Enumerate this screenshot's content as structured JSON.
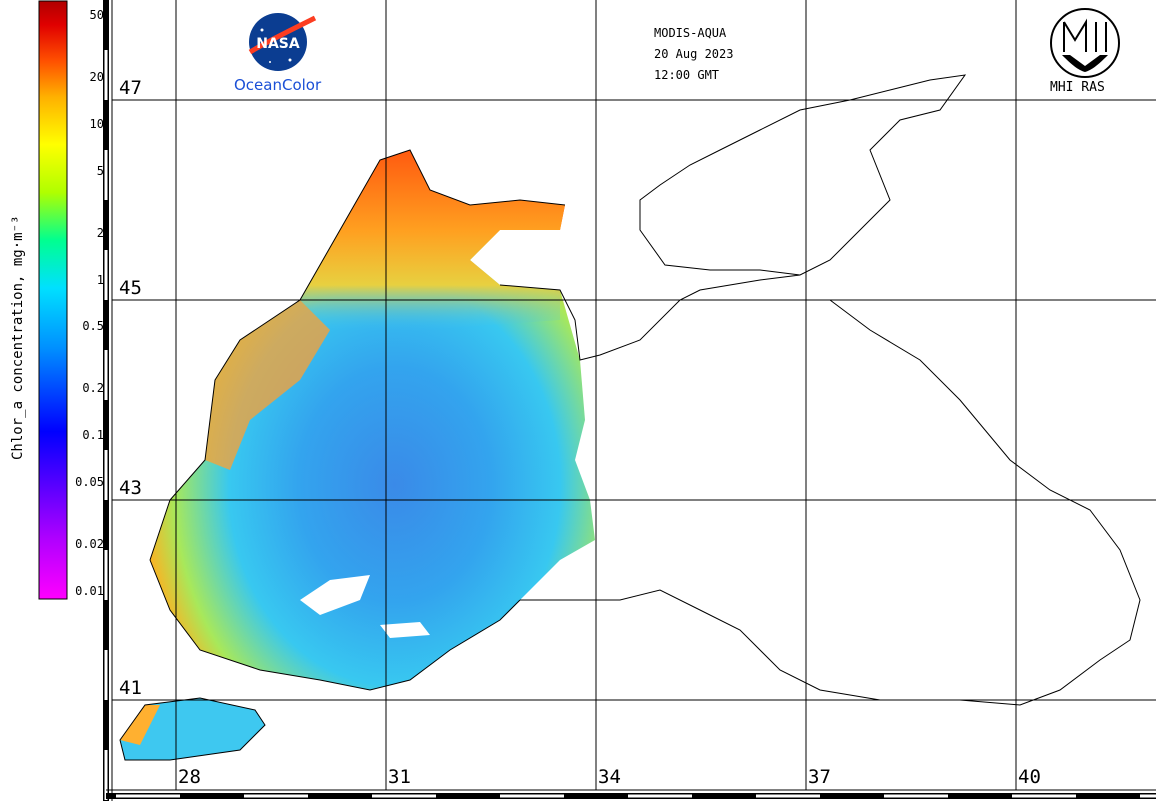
{
  "header": {
    "sensor": "MODIS-AQUA",
    "date": "20 Aug 2023",
    "time": "12:00 GMT"
  },
  "logos": {
    "nasa_logo_text": "NASA",
    "nasa_caption": "OceanColor",
    "mhi_caption": "MHI RAS"
  },
  "colorbar": {
    "title": "Chlor_a concentration, mg·m⁻³",
    "scale": "log",
    "range": [
      0.01,
      50
    ],
    "ticks": [
      "50",
      "20",
      "10",
      "5",
      "2",
      "1",
      "0.5",
      "0.2",
      "0.1",
      "0.05",
      "0.02",
      "0.01"
    ],
    "tick_values": [
      50,
      20,
      10,
      5,
      2,
      1,
      0.5,
      0.2,
      0.1,
      0.05,
      0.02,
      0.01
    ],
    "colors": [
      "#ff00ff",
      "#b000ff",
      "#0000ff",
      "#0090ff",
      "#00e0ff",
      "#00ff90",
      "#b0ff00",
      "#ffff00",
      "#ffb000",
      "#ff5000",
      "#e00000",
      "#b00000"
    ]
  },
  "grid": {
    "latitudes": [
      "47",
      "45",
      "43",
      "41"
    ],
    "longitudes": [
      "28",
      "31",
      "34",
      "37",
      "40"
    ]
  },
  "colors": {
    "sea_no_data": "#ffffff",
    "land": "#ffffff",
    "coastline": "#000000"
  }
}
